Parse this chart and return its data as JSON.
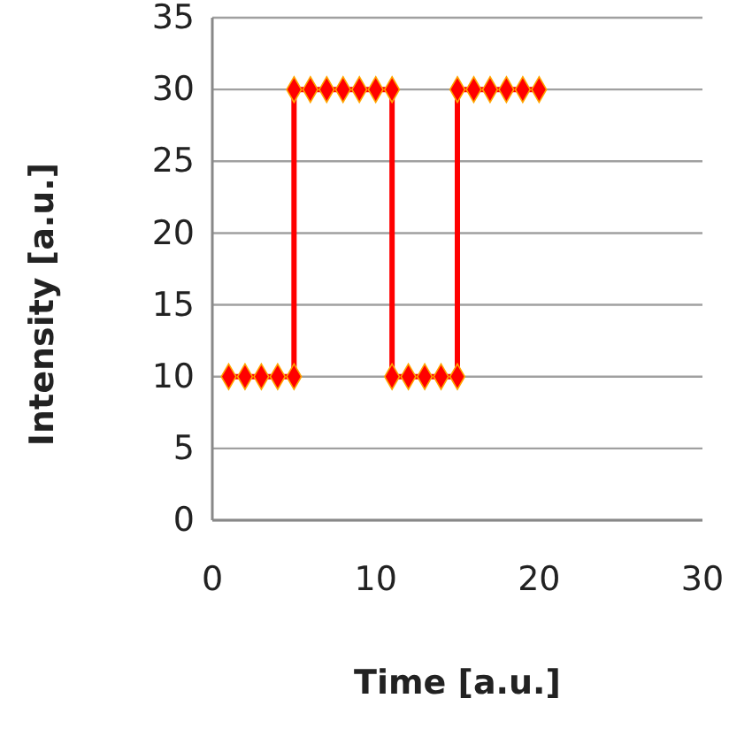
{
  "chart_data": {
    "type": "line",
    "xlabel": "Time [a.u.]",
    "ylabel": "Intensity [a.u.]",
    "xlim": [
      0,
      30
    ],
    "xticks": [
      0,
      10,
      20,
      30
    ],
    "ylim": [
      0,
      35
    ],
    "yticks": [
      0,
      5,
      10,
      15,
      20,
      25,
      30,
      35
    ],
    "grid": "y",
    "marker": "diamond",
    "line_style": "solid",
    "series": [
      {
        "color": "#ff0000",
        "x": [
          1,
          2,
          3,
          4,
          5,
          5,
          6,
          7,
          8,
          9,
          10,
          11,
          11,
          12,
          13,
          14,
          15,
          15,
          16,
          17,
          18,
          19,
          20
        ],
        "values": [
          10,
          10,
          10,
          10,
          10,
          30,
          30,
          30,
          30,
          30,
          30,
          30,
          10,
          10,
          10,
          10,
          10,
          30,
          30,
          30,
          30,
          30,
          30
        ]
      }
    ]
  }
}
